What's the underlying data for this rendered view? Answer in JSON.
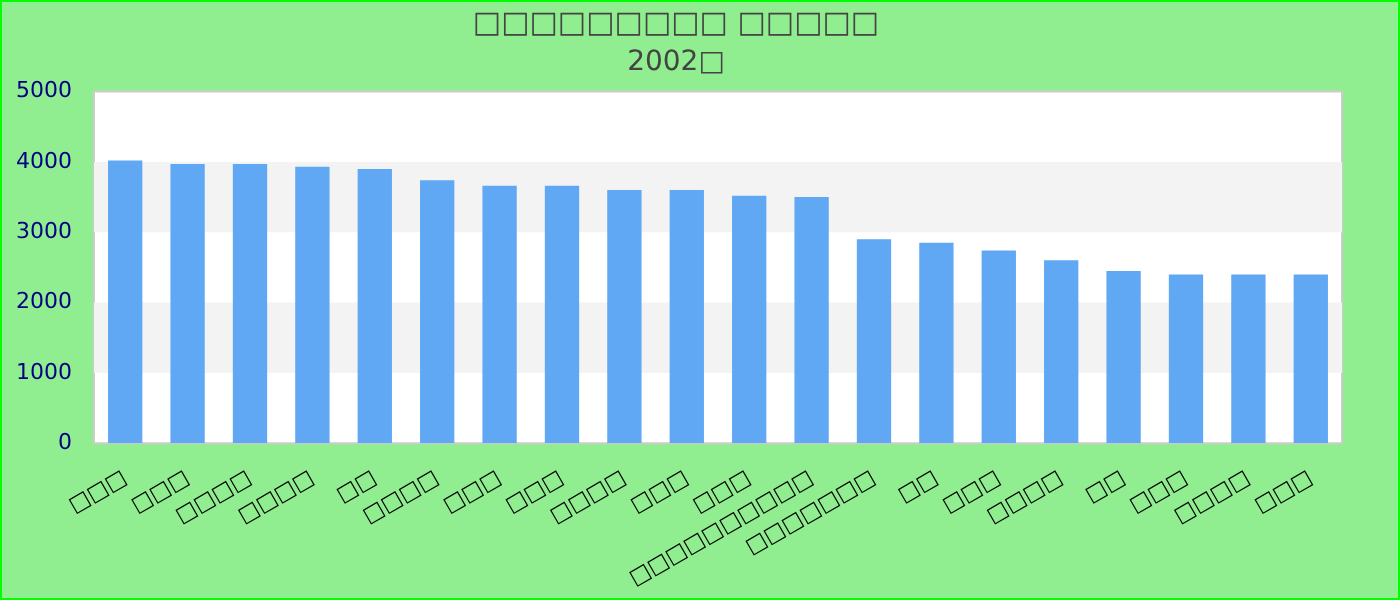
{
  "chart_data": {
    "type": "bar",
    "title": "□□□□□□□□□ □□□□□",
    "subtitle": "2002□",
    "categories": [
      "□□□",
      "□□□",
      "□□□□",
      "□□□□",
      "□□",
      "□□□□",
      "□□□",
      "□□□",
      "□□□□",
      "□□□",
      "□□□",
      "□□□□□□□□□□",
      "□□□□□□□",
      "□□",
      "□□□",
      "□□□□",
      "□□",
      "□□□",
      "□□□□",
      "□□□"
    ],
    "values": [
      4020,
      3970,
      3970,
      3930,
      3900,
      3740,
      3660,
      3660,
      3600,
      3600,
      3520,
      3500,
      2900,
      2850,
      2740,
      2600,
      2450,
      2400,
      2400,
      2400
    ],
    "color": "#60a8f4",
    "ylim": [
      0,
      5000
    ],
    "yticks": [
      0,
      1000,
      2000,
      3000,
      4000,
      5000
    ],
    "bands": [
      {
        "axis": "y",
        "from": 1000,
        "to": 2000,
        "color": "#f3f3f3"
      },
      {
        "axis": "y",
        "from": 3000,
        "to": 4000,
        "color": "#f3f3f3"
      }
    ],
    "legend": false
  }
}
